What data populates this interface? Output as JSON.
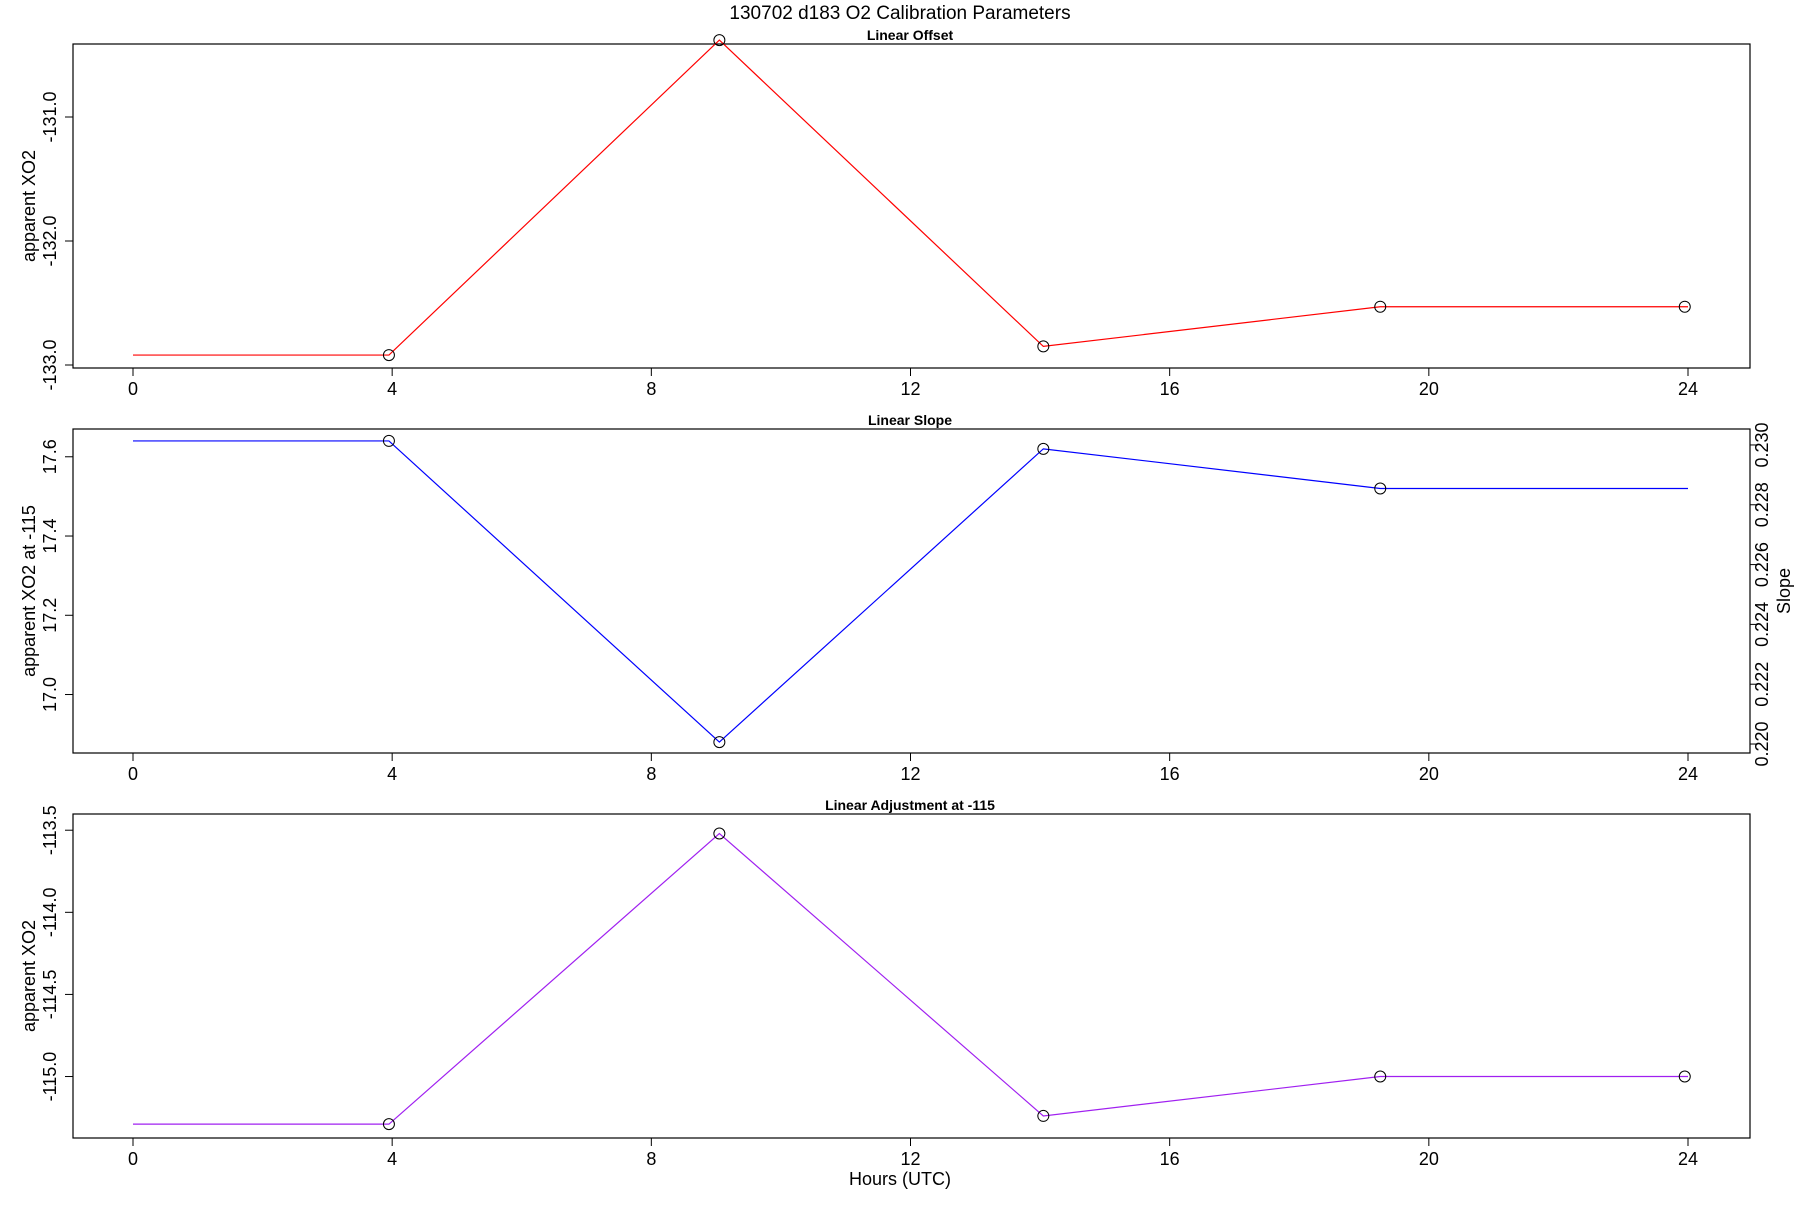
{
  "figure_title": "130702   d183   O2 Calibration Parameters",
  "x_axis_label": "Hours (UTC)",
  "chart_data": [
    {
      "type": "line",
      "title": "Linear Offset",
      "xlabel": "",
      "ylabel": "apparent XO2",
      "xlim": [
        0,
        24
      ],
      "ylim": [
        -133.0,
        -130.5
      ],
      "x_ticks": [
        0,
        4,
        8,
        12,
        16,
        20,
        24
      ],
      "x_tick_labels": [
        "0",
        "4",
        "8",
        "12",
        "16",
        "20",
        "24"
      ],
      "y_ticks": [
        -133.0,
        -132.0,
        -131.0
      ],
      "y_tick_labels": [
        "-133.0",
        "-132.0",
        "-131.0"
      ],
      "line_color": "#ff0000",
      "line_x": [
        0,
        3.95,
        9.05,
        14.05,
        19.25,
        24
      ],
      "line_y": [
        -132.92,
        -132.92,
        -130.38,
        -132.85,
        -132.53,
        -132.53
      ],
      "points_x": [
        3.95,
        9.05,
        14.05,
        19.25,
        23.95
      ],
      "points_y": [
        -132.92,
        -130.38,
        -132.85,
        -132.53,
        -132.53
      ],
      "grid": false
    },
    {
      "type": "line",
      "title": "Linear Slope",
      "xlabel": "",
      "ylabel": "apparent XO2 at -115",
      "y2label": "Slope",
      "xlim": [
        0,
        24
      ],
      "ylim": [
        16.86,
        17.66
      ],
      "x_ticks": [
        0,
        4,
        8,
        12,
        16,
        20,
        24
      ],
      "x_tick_labels": [
        "0",
        "4",
        "8",
        "12",
        "16",
        "20",
        "24"
      ],
      "y_ticks": [
        17.0,
        17.2,
        17.4,
        17.6
      ],
      "y_tick_labels": [
        "17.0",
        "17.2",
        "17.4",
        "17.6"
      ],
      "y2lim": [
        0.2198,
        0.2304
      ],
      "y2_ticks": [
        0.22,
        0.222,
        0.224,
        0.226,
        0.228,
        0.23
      ],
      "y2_tick_labels": [
        "0.220",
        "0.222",
        "0.224",
        "0.226",
        "0.228",
        "0.230"
      ],
      "line_color": "#0000ff",
      "line_x": [
        0,
        3.95,
        9.05,
        14.05,
        19.25,
        24
      ],
      "line_y": [
        17.64,
        17.64,
        16.88,
        17.62,
        17.52,
        17.52
      ],
      "points_x": [
        3.95,
        9.05,
        14.05,
        19.25
      ],
      "points_y": [
        17.64,
        16.88,
        17.62,
        17.52
      ],
      "grid": false
    },
    {
      "type": "line",
      "title": "Linear Adjustment at -115",
      "xlabel": "Hours (UTC)",
      "ylabel": "apparent XO2",
      "xlim": [
        0,
        24
      ],
      "ylim": [
        -115.35,
        -113.45
      ],
      "x_ticks": [
        0,
        4,
        8,
        12,
        16,
        20,
        24
      ],
      "x_tick_labels": [
        "0",
        "4",
        "8",
        "12",
        "16",
        "20",
        "24"
      ],
      "y_ticks": [
        -115.0,
        -114.5,
        -114.0,
        -113.5
      ],
      "y_tick_labels": [
        "-115.0",
        "-114.5",
        "-114.0",
        "-113.5"
      ],
      "line_color": "#a020f0",
      "line_x": [
        0,
        3.95,
        9.05,
        14.05,
        19.25,
        24
      ],
      "line_y": [
        -115.29,
        -115.29,
        -113.52,
        -115.24,
        -115.0,
        -115.0
      ],
      "points_x": [
        3.95,
        9.05,
        14.05,
        19.25,
        23.95
      ],
      "points_y": [
        -115.29,
        -113.52,
        -115.24,
        -115.0,
        -115.0
      ],
      "grid": false
    }
  ]
}
